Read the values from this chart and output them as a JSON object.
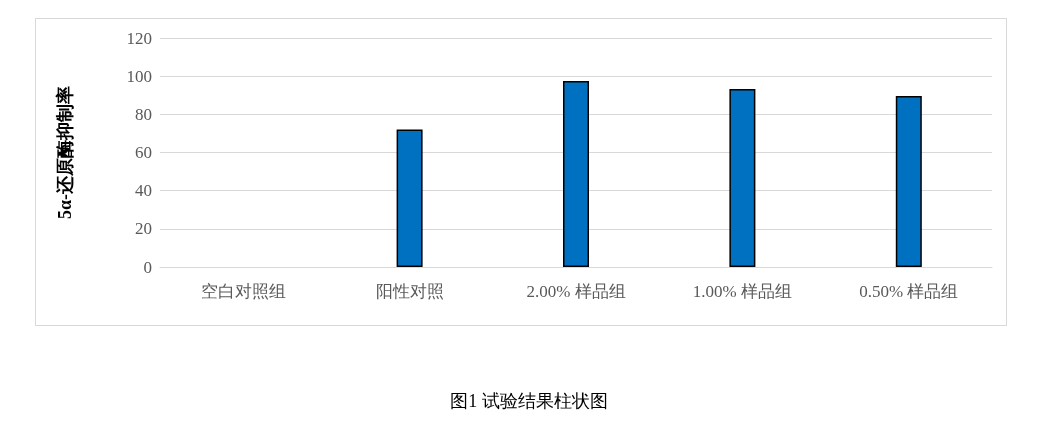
{
  "chart_data": {
    "type": "bar",
    "ylabel": "5α-还原酶抑制率",
    "categories": [
      "空白对照组",
      "阳性对照",
      "2.00% 样品组",
      "1.00% 样品组",
      "0.50% 样品组"
    ],
    "values": [
      0,
      72,
      97.5,
      93.3,
      89.6
    ],
    "color": "#0070c0",
    "ylim": [
      0,
      120
    ],
    "yticks": [
      0,
      20,
      40,
      60,
      80,
      100,
      120
    ],
    "grid": "y",
    "annotations": [
      "图1 试验结果柱状图"
    ]
  }
}
